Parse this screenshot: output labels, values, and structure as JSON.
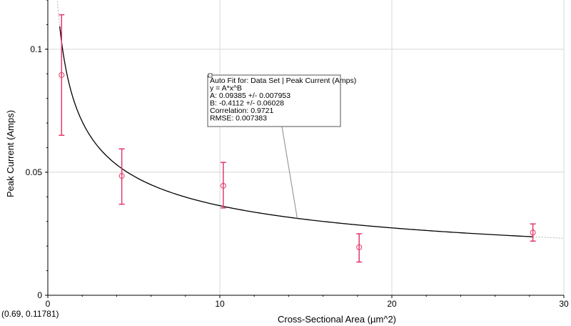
{
  "chart_data": {
    "type": "scatter",
    "xlabel": "Cross-Sectional Area (µm^2)",
    "ylabel": "Peak Current (Amps)",
    "xlim": [
      0,
      30
    ],
    "ylim": [
      0,
      0.12
    ],
    "x_ticks": [
      {
        "value": 0,
        "label": "0"
      },
      {
        "value": 10,
        "label": "10"
      },
      {
        "value": 20,
        "label": "20"
      },
      {
        "value": 30,
        "label": "30"
      }
    ],
    "y_ticks": [
      {
        "value": 0,
        "label": "0"
      },
      {
        "value": 0.05,
        "label": "0.05"
      },
      {
        "value": 0.1,
        "label": "0.1"
      }
    ],
    "grid": true,
    "points": [
      {
        "x": 0.8,
        "y": 0.0895,
        "y_low": 0.065,
        "y_high": 0.114
      },
      {
        "x": 4.3,
        "y": 0.0485,
        "y_low": 0.037,
        "y_high": 0.0595
      },
      {
        "x": 10.2,
        "y": 0.0445,
        "y_low": 0.0355,
        "y_high": 0.054
      },
      {
        "x": 18.1,
        "y": 0.0195,
        "y_low": 0.0135,
        "y_high": 0.025
      },
      {
        "x": 28.2,
        "y": 0.0255,
        "y_low": 0.022,
        "y_high": 0.029
      }
    ],
    "fit": {
      "A": 0.09385,
      "B": -0.4112,
      "x_start": 0.69,
      "x_end": 28.2,
      "dotted_extension": true,
      "label_anchor_x": 14.5
    },
    "fit_box_lines": [
      "Auto Fit for: Data Set | Peak Current (Amps)",
      "y = A*x^B",
      "A: 0.09385 +/- 0.007953",
      "B: -0.4112 +/- 0.06028",
      "Correlation: 0.9721",
      "RMSE: 0.007383"
    ],
    "colors": {
      "points": "#e23a6a",
      "fit_line": "#000000",
      "grid": "#d8d8d8",
      "callout": "#8a8a8a"
    }
  },
  "cursor_readout": "(0.69, 0.11781)"
}
